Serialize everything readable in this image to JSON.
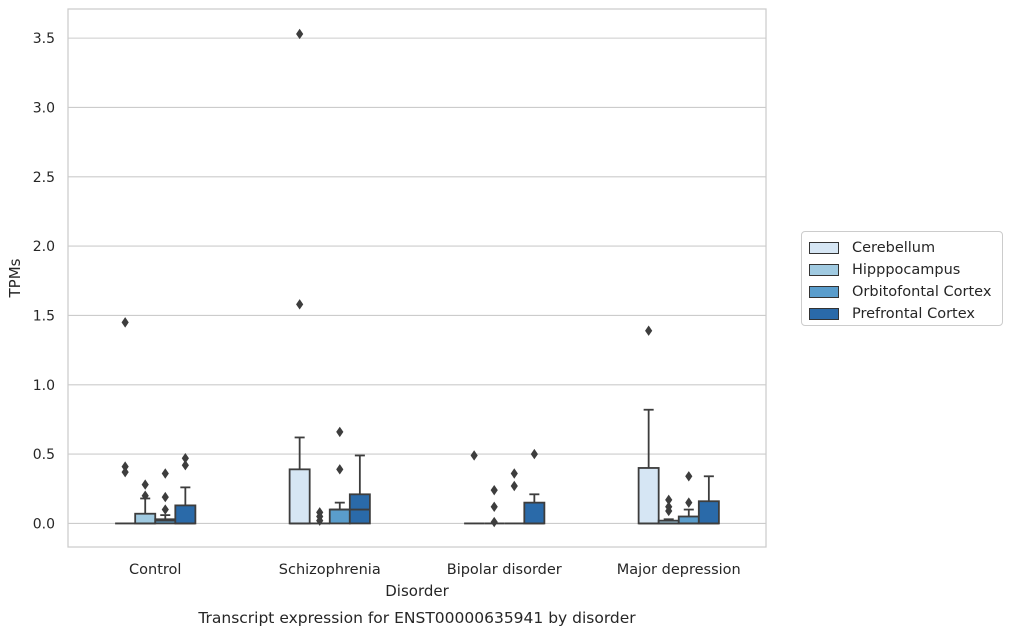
{
  "chart_data": {
    "type": "box",
    "title": "Transcript expression for ENST00000635941 by disorder",
    "xlabel": "Disorder",
    "ylabel": "TPMs",
    "categories": [
      "Control",
      "Schizophrenia",
      "Bipolar disorder",
      "Major depression"
    ],
    "ylim": [
      -0.17,
      3.71
    ],
    "yticks": [
      0.0,
      0.5,
      1.0,
      1.5,
      2.0,
      2.5,
      3.0,
      3.5
    ],
    "ytick_labels": [
      "0.0",
      "0.5",
      "1.0",
      "1.5",
      "2.0",
      "2.5",
      "3.0",
      "3.5"
    ],
    "grid": "horizontal",
    "legend_position": "center-right outside",
    "series": [
      {
        "name": "Cerebellum",
        "color": "#d6e6f4",
        "boxes": [
          {
            "q1": 0.0,
            "median": 0.0,
            "q3": 0.0,
            "whislo": 0.0,
            "whishi": 0.0,
            "fliers": [
              1.45,
              0.41,
              0.37
            ]
          },
          {
            "q1": 0.0,
            "median": 0.0,
            "q3": 0.39,
            "whislo": 0.0,
            "whishi": 0.62,
            "fliers": [
              3.53,
              1.58
            ]
          },
          {
            "q1": 0.0,
            "median": 0.0,
            "q3": 0.0,
            "whislo": 0.0,
            "whishi": 0.0,
            "fliers": [
              0.49
            ]
          },
          {
            "q1": 0.0,
            "median": 0.0,
            "q3": 0.4,
            "whislo": 0.0,
            "whishi": 0.82,
            "fliers": [
              1.39
            ]
          }
        ]
      },
      {
        "name": "Hipppocampus",
        "color": "#a0cae1",
        "boxes": [
          {
            "q1": 0.0,
            "median": 0.0,
            "q3": 0.07,
            "whislo": 0.0,
            "whishi": 0.18,
            "fliers": [
              0.28,
              0.2
            ]
          },
          {
            "q1": 0.0,
            "median": 0.0,
            "q3": 0.0,
            "whislo": 0.0,
            "whishi": 0.0,
            "fliers": [
              0.08,
              0.05,
              0.02
            ]
          },
          {
            "q1": 0.0,
            "median": 0.0,
            "q3": 0.0,
            "whislo": 0.0,
            "whishi": 0.0,
            "fliers": [
              0.24,
              0.12,
              0.01
            ]
          },
          {
            "q1": 0.0,
            "median": 0.0,
            "q3": 0.02,
            "whislo": 0.0,
            "whishi": 0.03,
            "fliers": [
              0.17,
              0.12,
              0.09
            ]
          }
        ]
      },
      {
        "name": "Orbitofontal Cortex",
        "color": "#5a9dcc",
        "boxes": [
          {
            "q1": 0.0,
            "median": 0.02,
            "q3": 0.03,
            "whislo": 0.0,
            "whishi": 0.06,
            "fliers": [
              0.36,
              0.19,
              0.1
            ]
          },
          {
            "q1": 0.0,
            "median": 0.1,
            "q3": 0.1,
            "whislo": 0.0,
            "whishi": 0.15,
            "fliers": [
              0.66,
              0.39
            ]
          },
          {
            "q1": 0.0,
            "median": 0.0,
            "q3": 0.0,
            "whislo": 0.0,
            "whishi": 0.0,
            "fliers": [
              0.36,
              0.27
            ]
          },
          {
            "q1": 0.0,
            "median": 0.0,
            "q3": 0.05,
            "whislo": 0.0,
            "whishi": 0.1,
            "fliers": [
              0.34,
              0.15
            ]
          }
        ]
      },
      {
        "name": "Prefrontal Cortex",
        "color": "#2a6aa9",
        "boxes": [
          {
            "q1": 0.0,
            "median": 0.0,
            "q3": 0.13,
            "whislo": 0.0,
            "whishi": 0.26,
            "fliers": [
              0.47,
              0.42
            ]
          },
          {
            "q1": 0.0,
            "median": 0.1,
            "q3": 0.21,
            "whislo": 0.0,
            "whishi": 0.49,
            "fliers": []
          },
          {
            "q1": 0.0,
            "median": 0.0,
            "q3": 0.15,
            "whislo": 0.0,
            "whishi": 0.21,
            "fliers": [
              0.5
            ]
          },
          {
            "q1": 0.0,
            "median": 0.0,
            "q3": 0.16,
            "whislo": 0.0,
            "whishi": 0.34,
            "fliers": []
          }
        ]
      }
    ]
  }
}
